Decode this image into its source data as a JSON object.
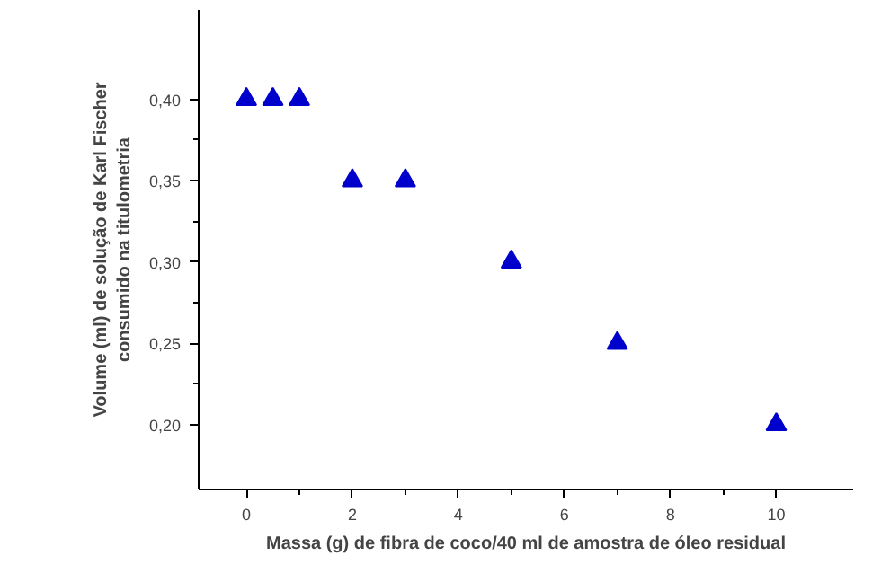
{
  "chart_data": {
    "type": "scatter",
    "xlabel": "Massa (g) de fibra de coco/40 ml de amostra de óleo residual",
    "ylabel": "Volume (ml) de solução de Karl Fischer\nconsumido na titulometria",
    "x": [
      0,
      0.5,
      1,
      2,
      3,
      5,
      7,
      10
    ],
    "series": [
      {
        "color": "#0000cc",
        "values": [
          0.4,
          0.4,
          0.4,
          0.35,
          0.35,
          0.3,
          0.25,
          0.2
        ]
      }
    ],
    "marker": "triangle",
    "xlim": [
      -0.9,
      11.45
    ],
    "ylim": [
      0.16,
      0.455
    ],
    "xticks": [
      0,
      2,
      4,
      6,
      8,
      10
    ],
    "yticks": [
      {
        "value": 0.2,
        "label": "0,20"
      },
      {
        "value": 0.25,
        "label": "0,25"
      },
      {
        "value": 0.3,
        "label": "0,30"
      },
      {
        "value": 0.35,
        "label": "0,35"
      },
      {
        "value": 0.4,
        "label": "0,40"
      }
    ]
  }
}
